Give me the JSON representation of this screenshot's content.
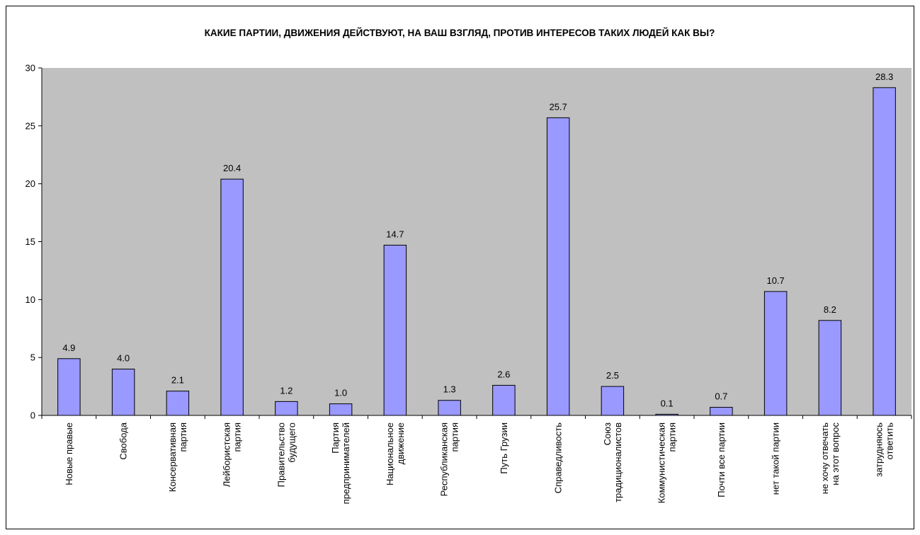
{
  "chart_data": {
    "type": "bar",
    "title": "КАКИЕ ПАРТИИ, ДВИЖЕНИЯ ДЕЙСТВУЮТ, НА ВАШ ВЗГЛЯД, ПРОТИВ ИНТЕРЕСОВ ТАКИХ ЛЮДЕЙ КАК ВЫ?",
    "xlabel": "",
    "ylabel": "",
    "ylim": [
      0,
      30
    ],
    "yticks": [
      0,
      5,
      10,
      15,
      20,
      25,
      30
    ],
    "grid": false,
    "legend": "none",
    "categories": [
      [
        "Новые правые"
      ],
      [
        "Свобода"
      ],
      [
        "Консервативная",
        "партия"
      ],
      [
        "Лейбористская",
        "партия"
      ],
      [
        "Правительство",
        "будущего"
      ],
      [
        "Партия",
        "предпринимателей"
      ],
      [
        "Национальное",
        "движение"
      ],
      [
        "Республиканская",
        "партия"
      ],
      [
        "Путь Грузии"
      ],
      [
        "Справедливость"
      ],
      [
        "Союз",
        "традиционалистов"
      ],
      [
        "Коммунистическая",
        "партия"
      ],
      [
        "Почти все партии"
      ],
      [
        "нет такой партии"
      ],
      [
        "не хочу отвечать",
        "на этот вопрос"
      ],
      [
        "затрудняюсь",
        "ответить"
      ]
    ],
    "values": [
      4.9,
      4.0,
      2.1,
      20.4,
      1.2,
      1.0,
      14.7,
      1.3,
      2.6,
      25.7,
      2.5,
      0.1,
      0.7,
      10.7,
      8.2,
      28.3
    ],
    "value_labels": [
      "4.9",
      "4.0",
      "2.1",
      "20.4",
      "1.2",
      "1.0",
      "14.7",
      "1.3",
      "2.6",
      "25.7",
      "2.5",
      "0.1",
      "0.7",
      "10.7",
      "8.2",
      "28.3"
    ],
    "colors": {
      "bar_fill": "#9999ff",
      "bar_stroke": "#000000",
      "plot_background": "#c0c0c0",
      "axis": "#000000"
    }
  }
}
